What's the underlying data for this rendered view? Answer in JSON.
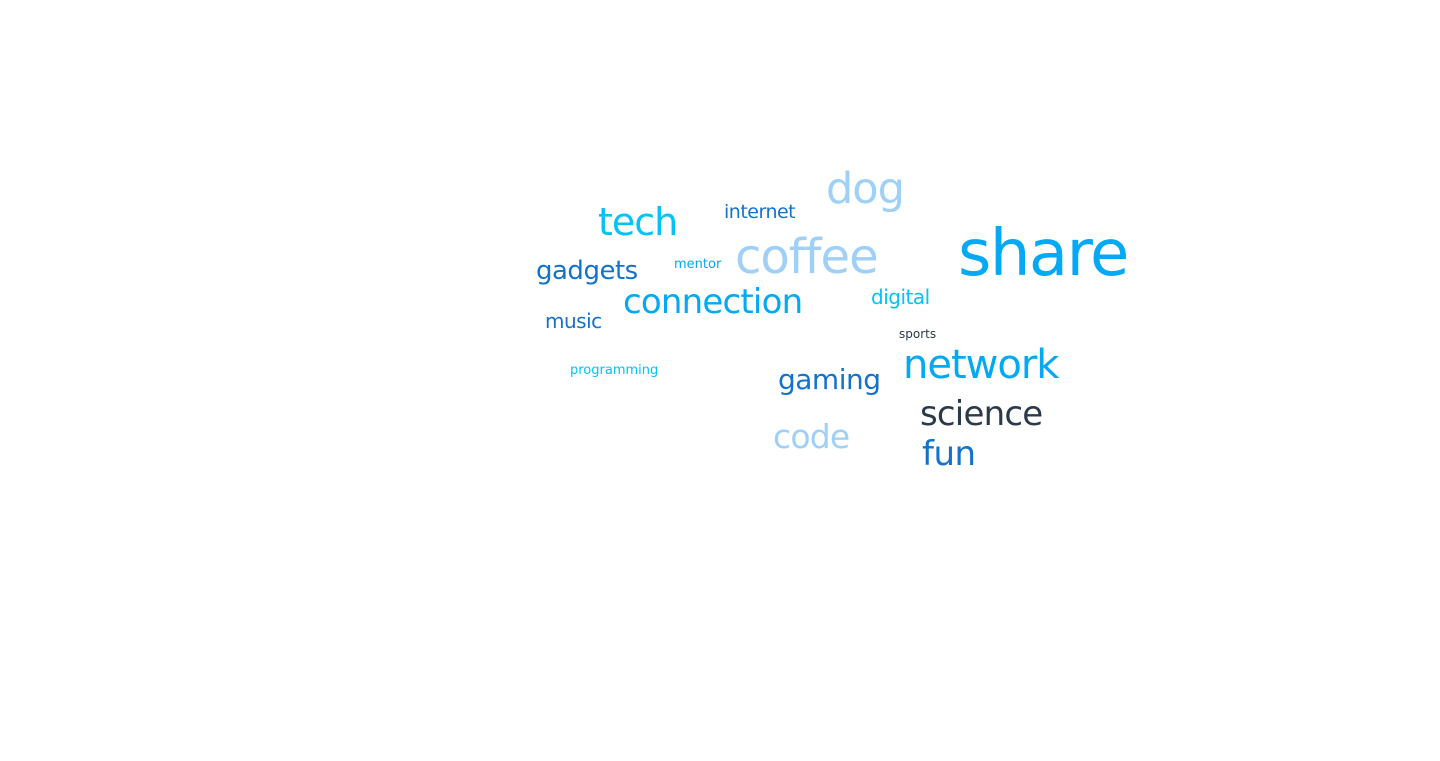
{
  "palette": {
    "sky": "#03a9f4",
    "cyan": "#00c4f5",
    "pale_blue": "#9fd0f7",
    "blue": "#1373cc",
    "navy": "#2b3a4b"
  },
  "words": {
    "share": {
      "text": "share",
      "color": "#03a9f4"
    },
    "coffee": {
      "text": "coffee",
      "color": "#9fd0f7"
    },
    "dog": {
      "text": "dog",
      "color": "#9fd0f7"
    },
    "tech": {
      "text": "tech",
      "color": "#00c4f5"
    },
    "internet": {
      "text": "internet",
      "color": "#1373cc"
    },
    "gadgets": {
      "text": "gadgets",
      "color": "#1373cc"
    },
    "mentor": {
      "text": "mentor",
      "color": "#03a9f4"
    },
    "connection": {
      "text": "connection",
      "color": "#03a9f4"
    },
    "digital": {
      "text": "digital",
      "color": "#00c4f5"
    },
    "music": {
      "text": "music",
      "color": "#1373cc"
    },
    "sports": {
      "text": "sports",
      "color": "#2b3a4b"
    },
    "network": {
      "text": "network",
      "color": "#03a9f4"
    },
    "programming": {
      "text": "programming",
      "color": "#00c4f5"
    },
    "gaming": {
      "text": "gaming",
      "color": "#1373cc"
    },
    "science": {
      "text": "science",
      "color": "#2b3a4b"
    },
    "code": {
      "text": "code",
      "color": "#9fd0f7"
    },
    "fun": {
      "text": "fun",
      "color": "#1373cc"
    }
  }
}
